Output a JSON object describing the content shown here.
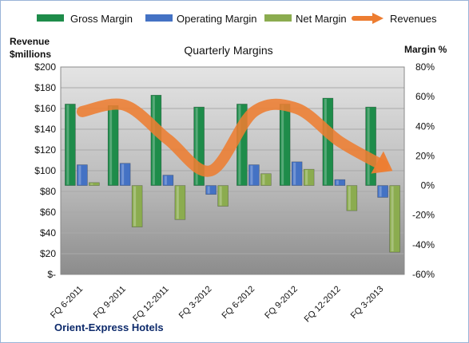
{
  "chart_data": {
    "type": "bar",
    "title": "Quarterly Margins",
    "categories": [
      "FQ 6-2011",
      "FQ 9-2011",
      "FQ 12-2011",
      "FQ 3-2012",
      "FQ 6-2012",
      "FQ 9-2012",
      "FQ 12-2012",
      "FQ 3-2013"
    ],
    "series": [
      {
        "name": "Gross Margin",
        "axis": "right",
        "values": [
          55,
          54,
          61,
          53,
          55,
          55,
          59,
          53
        ],
        "color": "#1e8c4a"
      },
      {
        "name": "Operating Margin",
        "axis": "right",
        "values": [
          14,
          15,
          7,
          -6,
          14,
          16,
          4,
          -8
        ],
        "color": "#4472c4"
      },
      {
        "name": "Net Margin",
        "axis": "right",
        "values": [
          2,
          -28,
          -23,
          -14,
          8,
          11,
          -17,
          -45
        ],
        "color": "#8bac4f"
      },
      {
        "name": "Revenues",
        "axis": "left",
        "type": "line",
        "values": [
          157,
          163,
          130,
          100,
          157,
          160,
          128,
          105
        ],
        "color": "#ed7d31"
      }
    ],
    "left_axis": {
      "label_line1": "Revenue",
      "label_line2": "$millions",
      "ylim": [
        0,
        200
      ],
      "ticks": [
        "$200",
        "$180",
        "$160",
        "$140",
        "$120",
        "$100",
        "$80",
        "$60",
        "$40",
        "$20",
        "$-"
      ]
    },
    "right_axis": {
      "label": "Margin %",
      "ylim": [
        -60,
        80
      ],
      "ticks": [
        "80%",
        "60%",
        "40%",
        "20%",
        "0%",
        "-20%",
        "-40%",
        "-60%"
      ]
    },
    "grid": true,
    "legend_position": "top",
    "source_label": "Orient-Express Hotels"
  }
}
